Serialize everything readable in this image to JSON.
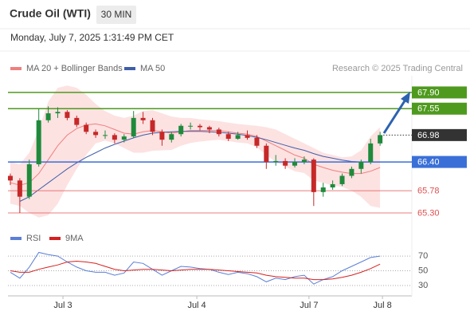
{
  "chart_data": {
    "type": "candlestick",
    "title": "Crude Oil (WTI)",
    "timeframe": "30 MIN",
    "timestamp": "Monday, July 7, 2025 1:31:49 PM CET",
    "credit": "Research © 2025 Trading Central",
    "up_color": "#1f8a3c",
    "down_color": "#c62828",
    "ylim": [
      64.99,
      68.26
    ],
    "xlim": [
      -0.25,
      42.35
    ],
    "xticks": [
      {
        "value": 5.55,
        "label": "Jul 3"
      },
      {
        "value": 19.67,
        "label": "Jul 4"
      },
      {
        "value": 31.5,
        "label": "Jul 7"
      },
      {
        "value": 39.25,
        "label": "Jul 8"
      }
    ],
    "ohlc": [
      [
        66.1,
        66.15,
        65.9,
        66.0
      ],
      [
        66.0,
        66.05,
        65.3,
        65.65
      ],
      [
        65.65,
        66.45,
        65.6,
        66.35
      ],
      [
        66.35,
        67.55,
        66.3,
        67.3
      ],
      [
        67.3,
        67.6,
        67.25,
        67.45
      ],
      [
        67.45,
        67.58,
        67.35,
        67.48
      ],
      [
        67.48,
        67.52,
        67.3,
        67.35
      ],
      [
        67.35,
        67.4,
        67.15,
        67.2
      ],
      [
        67.2,
        67.25,
        67.0,
        67.05
      ],
      [
        67.05,
        67.1,
        66.92,
        66.98
      ],
      [
        66.98,
        67.08,
        66.9,
        66.98
      ],
      [
        66.98,
        67.02,
        66.8,
        66.88
      ],
      [
        66.88,
        67.0,
        66.82,
        66.95
      ],
      [
        66.95,
        67.5,
        66.92,
        67.35
      ],
      [
        67.35,
        67.48,
        67.22,
        67.3
      ],
      [
        67.3,
        67.35,
        66.98,
        67.05
      ],
      [
        67.05,
        67.1,
        66.75,
        66.88
      ],
      [
        66.88,
        67.05,
        66.82,
        67.0
      ],
      [
        67.0,
        67.22,
        66.95,
        67.18
      ],
      [
        67.18,
        67.25,
        67.1,
        67.18
      ],
      [
        67.18,
        67.22,
        67.08,
        67.15
      ],
      [
        67.15,
        67.18,
        67.02,
        67.1
      ],
      [
        67.1,
        67.14,
        66.95,
        67.0
      ],
      [
        67.0,
        67.05,
        66.85,
        66.9
      ],
      [
        66.9,
        67.05,
        66.88,
        66.98
      ],
      [
        66.98,
        67.08,
        66.88,
        66.92
      ],
      [
        66.92,
        66.98,
        66.7,
        66.75
      ],
      [
        66.75,
        66.8,
        66.25,
        66.4
      ],
      [
        66.4,
        66.55,
        66.32,
        66.42
      ],
      [
        66.42,
        66.48,
        66.25,
        66.32
      ],
      [
        66.32,
        66.48,
        66.28,
        66.4
      ],
      [
        66.4,
        66.52,
        66.35,
        66.45
      ],
      [
        66.45,
        66.48,
        65.45,
        65.75
      ],
      [
        65.75,
        65.95,
        65.65,
        65.85
      ],
      [
        65.85,
        66.0,
        65.8,
        65.92
      ],
      [
        65.92,
        66.15,
        65.88,
        66.1
      ],
      [
        66.1,
        66.3,
        66.05,
        66.25
      ],
      [
        66.25,
        66.45,
        66.15,
        66.4
      ],
      [
        66.4,
        66.9,
        66.35,
        66.8
      ],
      [
        66.8,
        67.05,
        66.75,
        66.98
      ]
    ],
    "overlays": [
      {
        "name": "MA 20 + Bollinger Bands",
        "color": "#ef7f7f",
        "band_color": "#fde2e2",
        "values": [
          65.95,
          65.9,
          65.95,
          66.15,
          66.45,
          66.75,
          66.98,
          67.12,
          67.2,
          67.22,
          67.18,
          67.1,
          67.02,
          67.0,
          67.05,
          67.08,
          67.05,
          67.02,
          67.05,
          67.08,
          67.08,
          67.08,
          67.08,
          67.05,
          67.02,
          67.0,
          66.95,
          66.85,
          66.75,
          66.65,
          66.55,
          66.48,
          66.35,
          66.28,
          66.22,
          66.18,
          66.15,
          66.15,
          66.2,
          66.28
        ],
        "upper": [
          66.4,
          66.35,
          66.6,
          67.1,
          67.7,
          68.0,
          68.05,
          68.0,
          67.85,
          67.65,
          67.5,
          67.4,
          67.35,
          67.4,
          67.5,
          67.52,
          67.45,
          67.38,
          67.35,
          67.35,
          67.32,
          67.3,
          67.28,
          67.25,
          67.22,
          67.2,
          67.18,
          67.15,
          67.1,
          67.0,
          66.9,
          66.8,
          66.7,
          66.6,
          66.55,
          66.5,
          66.52,
          66.65,
          66.95,
          67.15
        ],
        "lower": [
          65.5,
          65.45,
          65.3,
          65.2,
          65.25,
          65.5,
          65.9,
          66.25,
          66.55,
          66.8,
          66.86,
          66.8,
          66.7,
          66.6,
          66.6,
          66.64,
          66.65,
          66.66,
          66.75,
          66.81,
          66.84,
          66.86,
          66.88,
          66.85,
          66.82,
          66.8,
          66.72,
          66.55,
          66.4,
          66.3,
          66.2,
          66.16,
          66.0,
          65.95,
          65.89,
          65.86,
          65.78,
          65.65,
          65.45,
          65.41
        ]
      },
      {
        "name": "MA 50",
        "color": "#3f5ea8",
        "values": [
          null,
          65.55,
          65.65,
          65.8,
          65.95,
          66.1,
          66.25,
          66.38,
          66.5,
          66.6,
          66.7,
          66.78,
          66.85,
          66.92,
          66.98,
          67.02,
          67.04,
          67.05,
          67.06,
          67.06,
          67.06,
          67.05,
          67.04,
          67.02,
          67.0,
          66.97,
          66.93,
          66.88,
          66.82,
          66.76,
          66.7,
          66.65,
          66.58,
          66.52,
          66.48,
          66.44,
          66.41,
          66.4,
          66.4,
          66.4
        ]
      }
    ],
    "levels": [
      {
        "value": 67.9,
        "label": "67.90",
        "color": "#4e9a1e",
        "line": "solid",
        "box": true
      },
      {
        "value": 67.55,
        "label": "67.55",
        "color": "#4e9a1e",
        "line": "solid",
        "box": true
      },
      {
        "value": 66.98,
        "label": "66.98",
        "color": "#333333",
        "line": "dotted",
        "box": true
      },
      {
        "value": 66.4,
        "label": "66.40",
        "color": "#3a6fd8",
        "line": "solid",
        "box": true
      },
      {
        "value": 65.78,
        "label": "65.78",
        "color": "#e05050",
        "line": "solid",
        "box": false
      },
      {
        "value": 65.3,
        "label": "65.30",
        "color": "#e05050",
        "line": "solid",
        "box": false
      }
    ],
    "rsi": {
      "ylim": [
        17,
        82
      ],
      "yticks": [
        30,
        50,
        70
      ],
      "series": [
        {
          "name": "RSI",
          "color": "#5b7fd6",
          "values": [
            48,
            40,
            55,
            75,
            72,
            70,
            62,
            55,
            50,
            48,
            48,
            44,
            47,
            62,
            60,
            52,
            44,
            50,
            56,
            55,
            53,
            52,
            48,
            45,
            48,
            46,
            42,
            35,
            40,
            38,
            42,
            44,
            32,
            38,
            42,
            50,
            56,
            62,
            68,
            70
          ]
        },
        {
          "name": "9MA",
          "color": "#d62020",
          "values": [
            50,
            48,
            48,
            52,
            55,
            58,
            62,
            63,
            62,
            60,
            56,
            52,
            50,
            51,
            52,
            52,
            51,
            50,
            51,
            52,
            52,
            52,
            51,
            50,
            49,
            48,
            47,
            44,
            42,
            41,
            40,
            40,
            38,
            38,
            39,
            41,
            44,
            48,
            53,
            59
          ]
        }
      ]
    }
  }
}
